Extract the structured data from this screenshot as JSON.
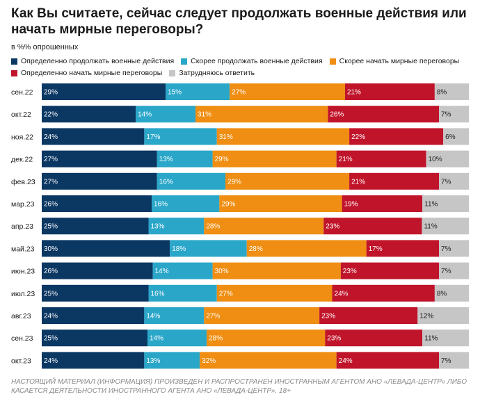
{
  "title": "Как Вы считаете, сейчас следует продолжать военные действия или начать мирные переговоры?",
  "subtitle": "в %% опрошенных",
  "footer": "НАСТОЯЩИЙ МАТЕРИАЛ (ИНФОРМАЦИЯ) ПРОИЗВЕДЕН И РАСПРОСТРАНЕН ИНОСТРАННЫМ АГЕНТОМ АНО «ЛЕВАДА-ЦЕНТР» ЛИБО КАСАЕТСЯ ДЕЯТЕЛЬНОСТИ ИНОСТРАННОГО АГЕНТА АНО «ЛЕВАДА-ЦЕНТР». 18+",
  "chart_data": {
    "type": "bar",
    "orientation": "horizontal",
    "stacked": true,
    "legend_position": "top",
    "categories": [
      "сен.22",
      "окт.22",
      "ноя.22",
      "дек.22",
      "фев.23",
      "мар.23",
      "апр.23",
      "май.23",
      "июн.23",
      "июл.23",
      "авг.23",
      "сен.23",
      "окт.23"
    ],
    "series": [
      {
        "name": "Определенно продолжать военные действия",
        "color": "#0b3763",
        "label_color": "#ffffff",
        "values": [
          29,
          22,
          24,
          27,
          27,
          26,
          25,
          30,
          26,
          25,
          24,
          25,
          24
        ]
      },
      {
        "name": "Скорее продолжать военные действия",
        "color": "#2aa6c9",
        "label_color": "#ffffff",
        "values": [
          15,
          14,
          17,
          13,
          16,
          16,
          13,
          18,
          14,
          16,
          14,
          14,
          13
        ]
      },
      {
        "name": "Скорее начать мирные переговоры",
        "color": "#ef8e12",
        "label_color": "#ffffff",
        "values": [
          27,
          31,
          31,
          29,
          29,
          29,
          28,
          28,
          30,
          27,
          27,
          28,
          32
        ]
      },
      {
        "name": "Определенно начать мирные переговоры",
        "color": "#c0142a",
        "label_color": "#ffffff",
        "values": [
          21,
          26,
          22,
          21,
          21,
          19,
          23,
          17,
          23,
          24,
          23,
          23,
          24
        ]
      },
      {
        "name": "Затрудняюсь ответить",
        "color": "#c6c6c6",
        "label_color": "#1a1a1a",
        "values": [
          8,
          7,
          6,
          10,
          7,
          11,
          11,
          7,
          7,
          8,
          12,
          11,
          7
        ]
      }
    ],
    "value_suffix": "%"
  }
}
